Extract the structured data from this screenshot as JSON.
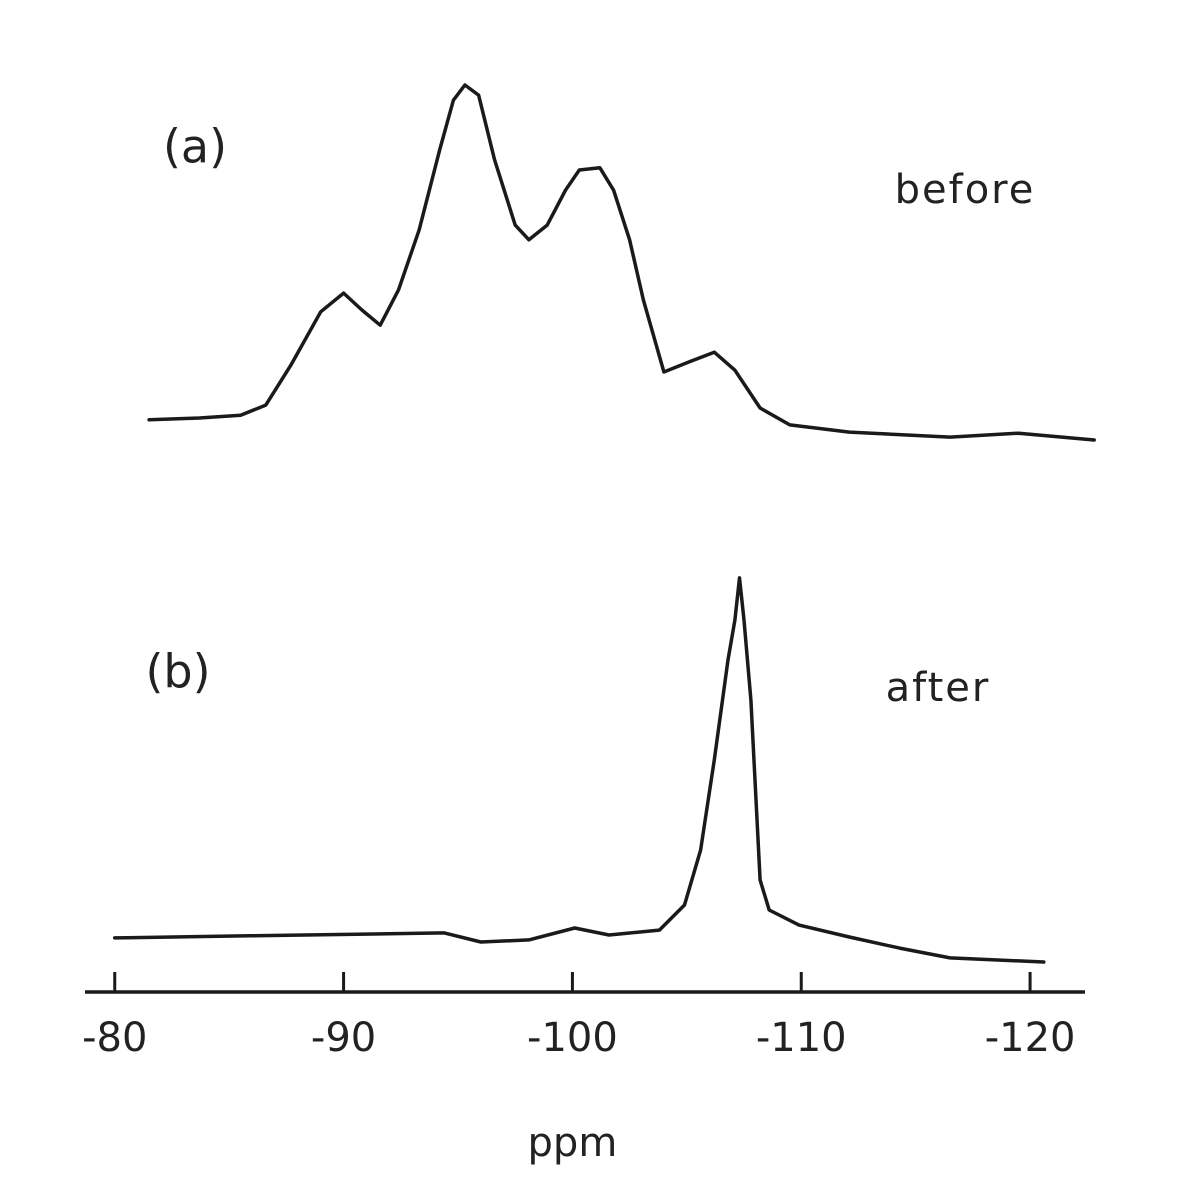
{
  "chart_data": [
    {
      "type": "line",
      "panel_label": "(a)",
      "x": [
        -81.5,
        -83.7,
        -85.5,
        -86.6,
        -87.7,
        -89.0,
        -90.0,
        -90.8,
        -91.6,
        -92.4,
        -93.3,
        -94.2,
        -94.8,
        -95.3,
        -95.9,
        -96.6,
        -97.5,
        -98.1,
        -98.9,
        -99.7,
        -100.3,
        -101.2,
        -101.8,
        -102.5,
        -103.1,
        -104.0,
        -105.1,
        -106.2,
        -107.1,
        -108.2,
        -109.5,
        -112.1,
        -116.5,
        -119.5,
        -122.8
      ],
      "series": [
        {
          "name": "before",
          "color": "#1a1a1a",
          "values": [
            5.6,
            6.1,
            6.9,
            9.7,
            20.8,
            35.6,
            40.8,
            36.1,
            31.9,
            41.7,
            58.3,
            80.6,
            94.4,
            98.6,
            95.8,
            77.8,
            59.7,
            55.6,
            59.7,
            69.4,
            75.0,
            75.6,
            69.4,
            55.6,
            38.9,
            18.9,
            21.7,
            24.4,
            19.4,
            8.9,
            4.2,
            2.2,
            0.8,
            1.9,
            0
          ]
        }
      ],
      "xlim": [
        -78.7,
        -122.4
      ],
      "ylim": [
        0,
        100
      ]
    },
    {
      "type": "line",
      "panel_label": "(b)",
      "x": [
        -80.0,
        -85.9,
        -94.4,
        -96.0,
        -98.1,
        -100.1,
        -101.6,
        -103.8,
        -104.9,
        -105.6,
        -106.2,
        -106.8,
        -107.1,
        -107.3,
        -107.5,
        -107.8,
        -108.2,
        -108.6,
        -109.9,
        -112.1,
        -114.3,
        -116.5,
        -120.6
      ],
      "series": [
        {
          "name": "after",
          "color": "#1a1a1a",
          "values": [
            11.5,
            12.0,
            12.7,
            10.5,
            11.0,
            13.9,
            12.2,
            13.4,
            19.5,
            32.9,
            54.9,
            79.3,
            89.0,
            99.3,
            89.0,
            69.5,
            25.6,
            18.3,
            14.6,
            11.7,
            9.0,
            6.6,
            5.6
          ]
        }
      ],
      "xlim": [
        -78.7,
        -122.4
      ],
      "ylim": [
        0,
        100
      ],
      "xticks": [
        -80,
        -90,
        -100,
        -110,
        -120
      ],
      "xlabel": "ppm"
    }
  ]
}
